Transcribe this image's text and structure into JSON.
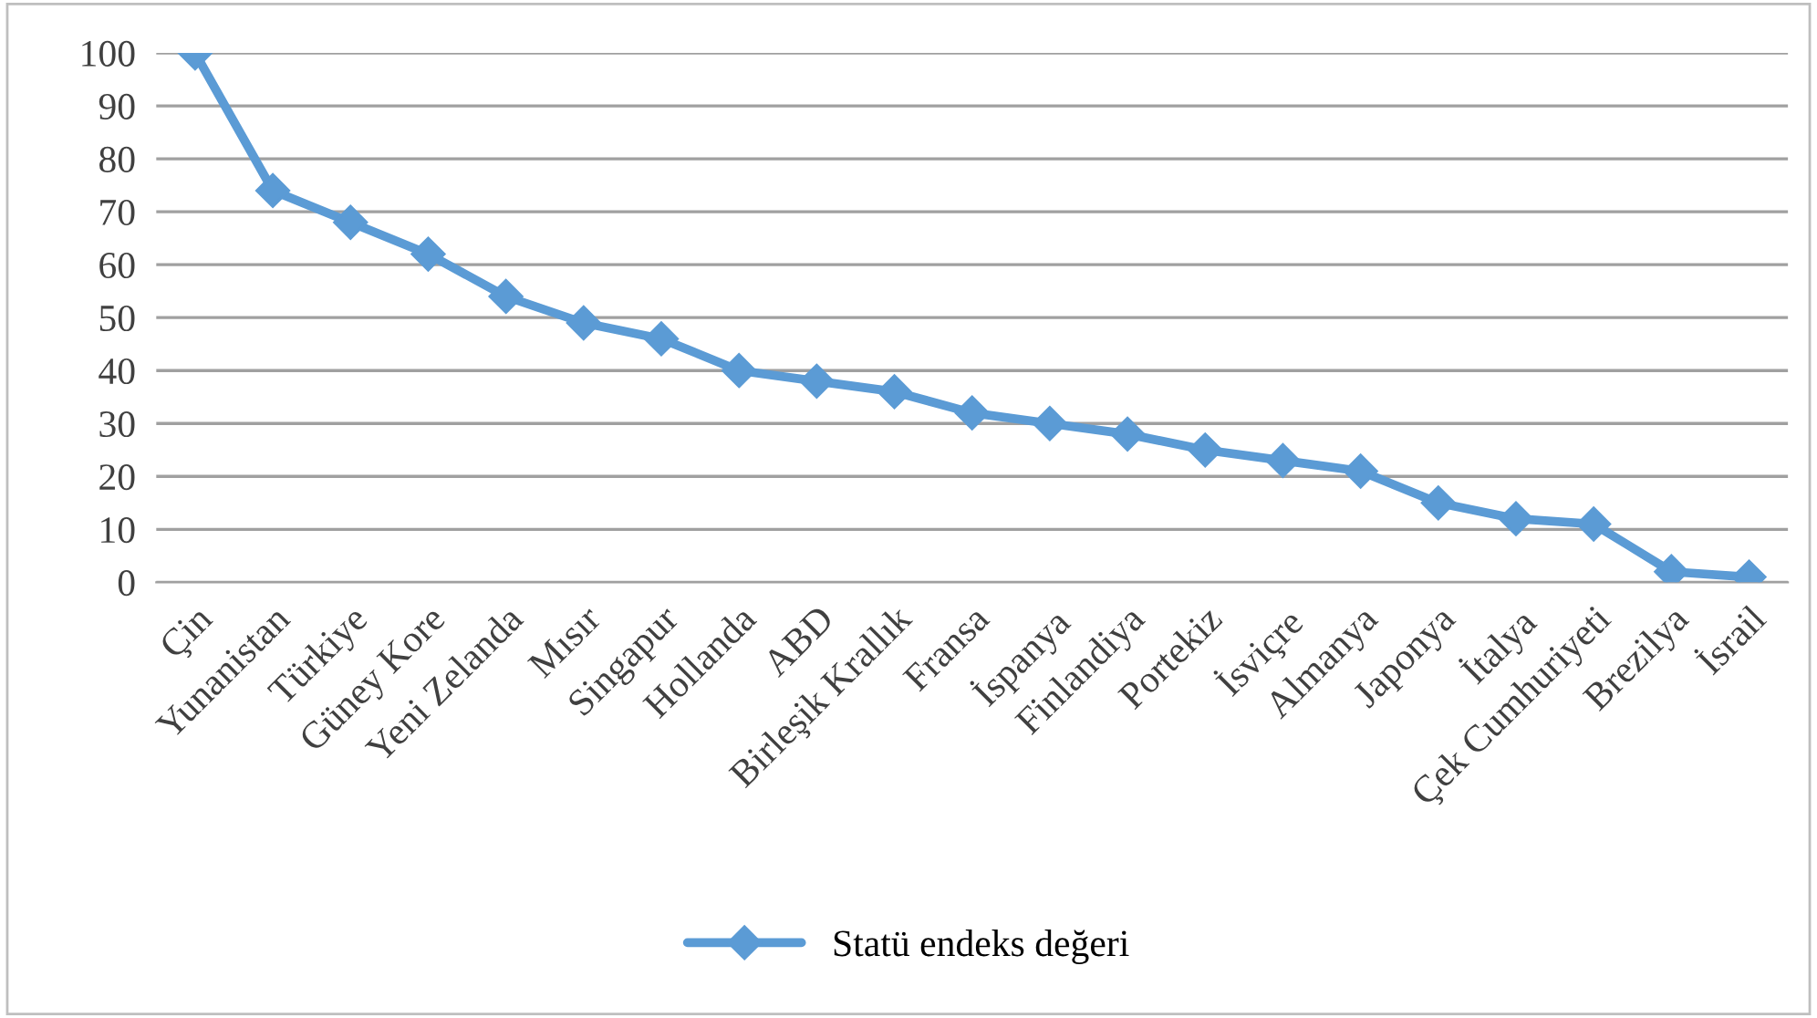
{
  "chart_data": {
    "type": "line",
    "categories": [
      "Çin",
      "Yunanistan",
      "Türkiye",
      "Güney Kore",
      "Yeni Zelanda",
      "Mısır",
      "Singapur",
      "Hollanda",
      "ABD",
      "Birleşik Krallık",
      "Fransa",
      "İspanya",
      "Finlandiya",
      "Portekiz",
      "İsviçre",
      "Almanya",
      "Japonya",
      "İtalya",
      "Çek Cumhuriyeti",
      "Brezilya",
      "İsrail"
    ],
    "series": [
      {
        "name": "Statü endeks değeri",
        "color": "#5b9bd5",
        "values": [
          100,
          74,
          68,
          62,
          54,
          49,
          46,
          40,
          38,
          36,
          32,
          30,
          28,
          25,
          23,
          21,
          15,
          12,
          11,
          2,
          1
        ]
      }
    ],
    "ylim": [
      0,
      100
    ],
    "yticks": [
      0,
      10,
      20,
      30,
      40,
      50,
      60,
      70,
      80,
      90,
      100
    ],
    "grid": "y",
    "legend": "bottom",
    "marker": "diamond",
    "line_style": "solid"
  }
}
